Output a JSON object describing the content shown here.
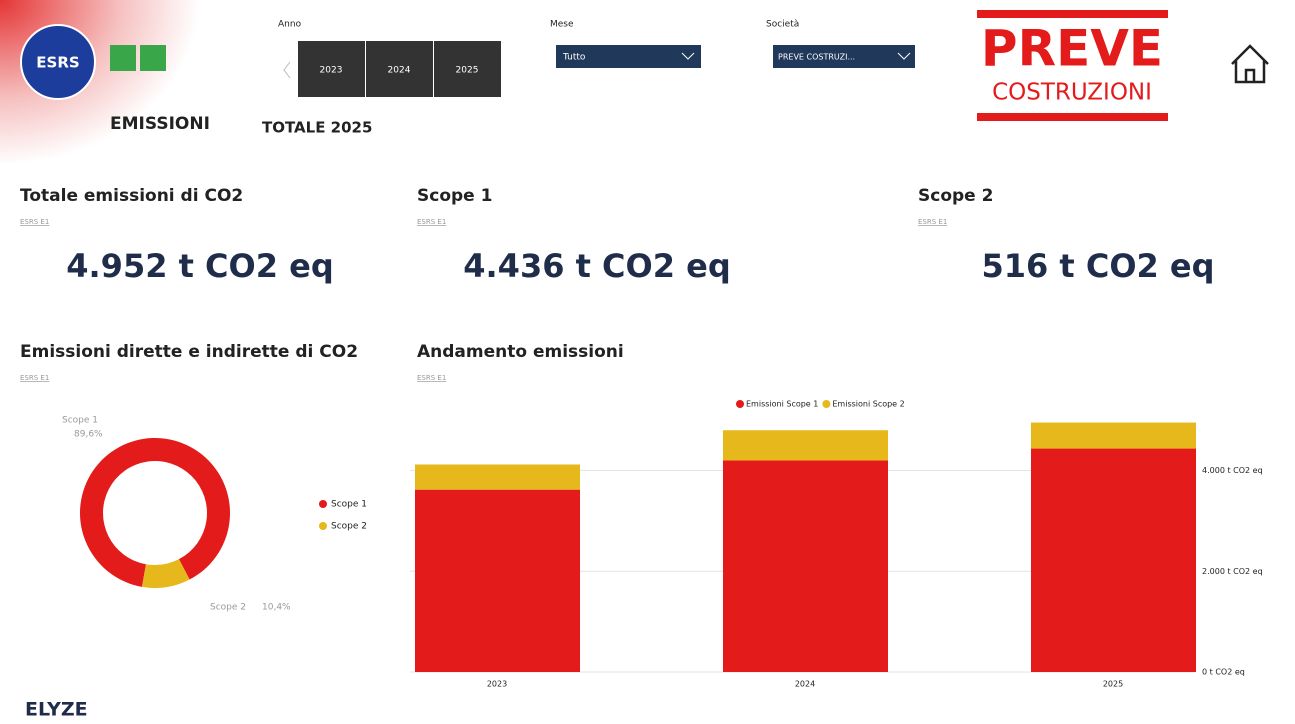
{
  "header": {
    "page_title": "EMISSIONI",
    "subtitle": "TOTALE 2025",
    "badge": "ESRS",
    "filters": {
      "anno": {
        "label": "Anno",
        "options": [
          "2023",
          "2024",
          "2025"
        ]
      },
      "mese": {
        "label": "Mese",
        "value": "Tutto"
      },
      "societa": {
        "label": "Società",
        "value": "PREVE COSTRUZI..."
      }
    },
    "logo": {
      "name": "PREVE",
      "tagline": "COSTRUZIONI"
    }
  },
  "kpis": [
    {
      "title": "Totale emissioni di CO2",
      "ref": "ESRS E1",
      "value": "4.952 t CO2 eq"
    },
    {
      "title": "Scope 1",
      "ref": "ESRS E1",
      "value": "4.436 t CO2 eq"
    },
    {
      "title": "Scope 2",
      "ref": "ESRS E1",
      "value": "516 t CO2 eq"
    }
  ],
  "donut": {
    "type": "pie",
    "title": "Emissioni dirette e indirette di CO2",
    "ref": "ESRS E1",
    "categories": [
      "Scope 1",
      "Scope 2"
    ],
    "values": [
      89.6,
      10.4
    ],
    "value_labels": [
      "89,6%",
      "10,4%"
    ],
    "colors": [
      "#e31b1b",
      "#e6b81c"
    ]
  },
  "bar": {
    "type": "bar",
    "title": "Andamento emissioni",
    "ref": "ESRS E1",
    "categories": [
      "2023",
      "2024",
      "2025"
    ],
    "series": [
      {
        "name": "Emissioni Scope 1",
        "color": "#e31b1b",
        "values": [
          3620,
          4200,
          4436
        ]
      },
      {
        "name": "Emissioni Scope 2",
        "color": "#e6b81c",
        "values": [
          500,
          600,
          516
        ]
      }
    ],
    "ylim": [
      0,
      5400
    ],
    "yticks": [
      {
        "value": 0,
        "label": "0 t CO2 eq"
      },
      {
        "value": 2000,
        "label": "2.000 t CO2 eq"
      },
      {
        "value": 4000,
        "label": "4.000 t CO2 eq"
      }
    ],
    "grid": true
  },
  "footer": {
    "brand": "ELYZE"
  }
}
